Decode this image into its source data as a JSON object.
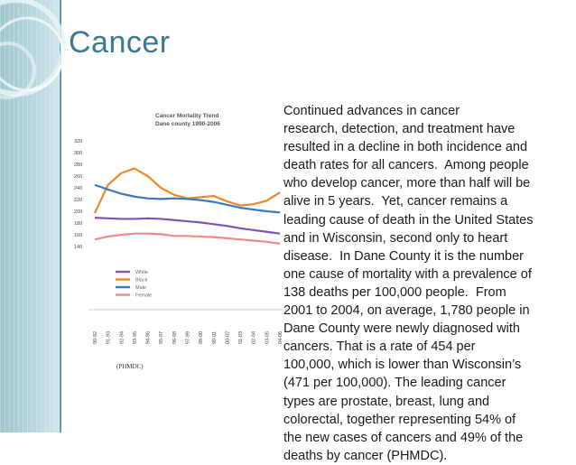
{
  "slide": {
    "title": "Cancer",
    "source": "(PHMDC)",
    "body_lines": [
      "Continued advances in cancer",
      "research, detection, and treatment have",
      "resulted in a decline in both incidence and",
      "death rates for all cancers.  Among people",
      "who develop cancer, more than half will be",
      "alive in 5 years.  Yet, cancer remains a",
      "leading cause of death in the United States",
      "and in Wisconsin, second only to heart",
      "disease.  In Dane County it is the number",
      "one cause of mortality with a prevalence of",
      "138 deaths per 100,000 people.  From",
      "2001 to 2004, on average, 1,780 people in",
      "Dane County were newly diagnosed with",
      "cancers. That is a rate of 454 per",
      "100,000, which is lower than Wisconsin’s",
      "(471 per 100,000). The leading cancer",
      "types are prostate, breast, lung and",
      "colorectal, together representing 54% of",
      "the new cases of cancers and 49% of the",
      "deaths by cancer (PHMDC)."
    ]
  },
  "chart_data": {
    "type": "line",
    "title": "Cancer Mortality Trend",
    "subtitle": "Dane county 1990-2006",
    "categories": [
      "90-92",
      "91-93",
      "92-94",
      "93-95",
      "94-96",
      "95-97",
      "96-98",
      "97-99",
      "98-00",
      "99-01",
      "00-02",
      "01-03",
      "02-04",
      "03-05",
      "04-06"
    ],
    "ylim": [
      140,
      320
    ],
    "yticks": [
      140,
      160,
      180,
      200,
      220,
      240,
      260,
      280,
      300,
      320
    ],
    "legend_position": "bottom-left",
    "series": [
      {
        "name": "White",
        "color": "#7b55b8",
        "values": [
          189,
          188,
          187,
          187,
          188,
          187,
          185,
          183,
          181,
          178,
          175,
          171,
          168,
          165,
          162
        ]
      },
      {
        "name": "Black",
        "color": "#e88a2a",
        "values": [
          197,
          245,
          265,
          273,
          260,
          240,
          228,
          222,
          224,
          226,
          217,
          210,
          212,
          218,
          232
        ]
      },
      {
        "name": "Male",
        "color": "#3d79b6",
        "values": [
          245,
          237,
          230,
          225,
          222,
          221,
          222,
          221,
          219,
          216,
          211,
          206,
          203,
          200,
          198
        ]
      },
      {
        "name": "Female",
        "color": "#ef8a86",
        "values": [
          152,
          157,
          160,
          162,
          162,
          161,
          158,
          158,
          157,
          156,
          154,
          152,
          150,
          148,
          145
        ]
      }
    ]
  }
}
